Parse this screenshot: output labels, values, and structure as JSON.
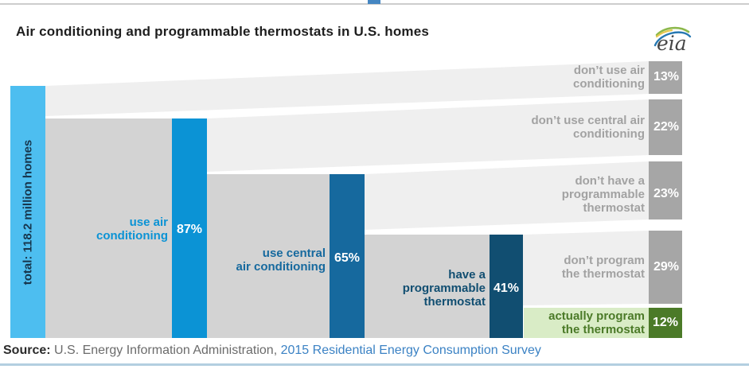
{
  "header": {
    "title": "Air conditioning and programmable thermostats in U.S. homes",
    "logo": {
      "text": "eia"
    }
  },
  "accents": {
    "top_rule_color": "#cdcdcd",
    "top_accent_color": "#4586c2",
    "bottom_rule_color": "#b3cfe0"
  },
  "chart_data": {
    "type": "funnel",
    "title": "Air conditioning and programmable thermostats in U.S. homes",
    "population": {
      "label": "total: 118.2 million homes",
      "value_million_homes": 118.2,
      "pct": 100,
      "bar_color": "#4dbef0",
      "text_color": "#17364d"
    },
    "steps": [
      {
        "label": "use air conditioning",
        "label_lines": [
          "use air",
          "conditioning"
        ],
        "pct": 87,
        "color": "#0b93d5",
        "complement": {
          "label": "don’t use air conditioning",
          "label_lines": [
            "don’t use air",
            "conditioning"
          ],
          "pct": 13
        }
      },
      {
        "label": "use central air conditioning",
        "label_lines": [
          "use central",
          "air conditioning"
        ],
        "pct": 65,
        "color": "#16699e",
        "complement": {
          "label": "don’t use central air conditioning",
          "label_lines": [
            "don’t use central air",
            "conditioning"
          ],
          "pct": 22
        }
      },
      {
        "label": "have a programmable thermostat",
        "label_lines": [
          "have a",
          "programmable",
          "thermostat"
        ],
        "pct": 41,
        "color": "#114e71",
        "complement": {
          "label": "don’t have a programmable thermostat",
          "label_lines": [
            "don’t have a",
            "programmable",
            "thermostat"
          ],
          "pct": 23
        }
      },
      {
        "label": "actually program the thermostat",
        "label_lines": [
          "actually program",
          "the thermostat"
        ],
        "pct": 12,
        "color": "#4b7a28",
        "band_color": "#d9ecc6",
        "complement": {
          "label": "don’t program the thermostat",
          "label_lines": [
            "don’t program",
            "the thermostat"
          ],
          "pct": 29
        }
      }
    ],
    "palette": {
      "body": "#d3d3d3",
      "wedge": "#efefef",
      "gray_bar": "#a6a6a6",
      "gray_text": "#a2a2a2",
      "pct_text": "#ffffff"
    },
    "value_suffix": "%"
  },
  "footer": {
    "source_label": "Source:",
    "source_text": " U.S. Energy Information Administration, ",
    "source_link": "2015 Residential Energy Consumption Survey"
  }
}
